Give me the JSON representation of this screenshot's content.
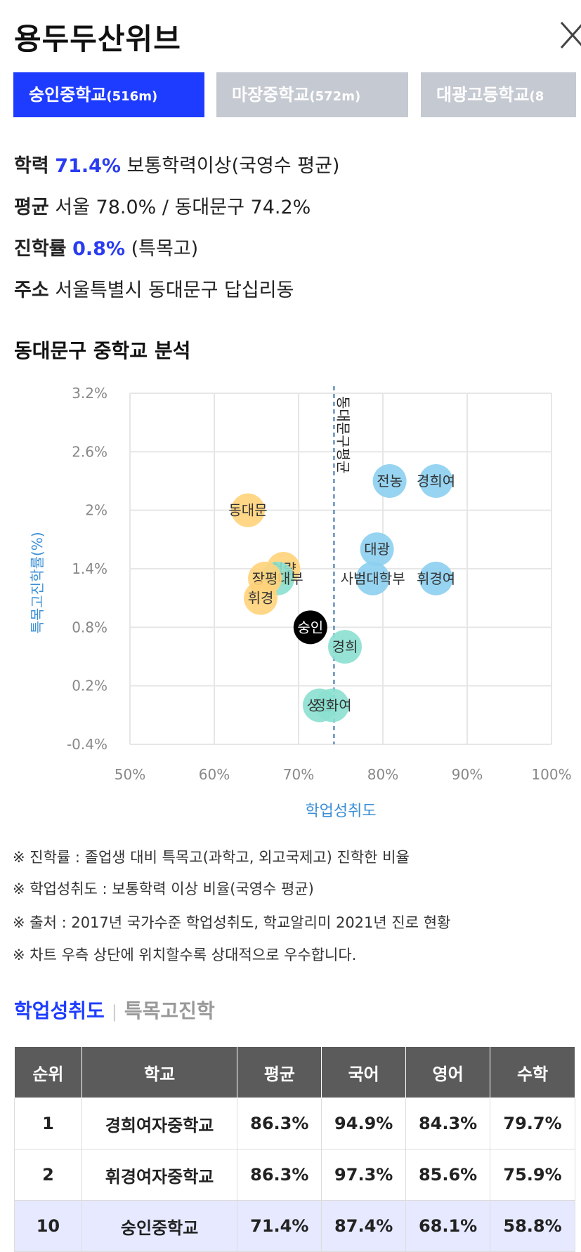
{
  "page": {
    "title": "용두두산위브"
  },
  "tabs": [
    {
      "name": "숭인중학교",
      "dist": "(516m)",
      "active": true
    },
    {
      "name": "마장중학교",
      "dist": "(572m)",
      "active": false
    },
    {
      "name": "대광고등학교",
      "dist": "(8",
      "active": false
    }
  ],
  "info": {
    "academic_label": "학력",
    "academic_value": "71.4%",
    "academic_desc": "보통학력이상(국영수 평균)",
    "avg_label": "평균",
    "avg_desc": "서울 78.0% / 동대문구 74.2%",
    "adv_label": "진학률",
    "adv_value": "0.8%",
    "adv_desc": "(특목고)",
    "addr_label": "주소",
    "addr_desc": "서울특별시 동대문구 답십리동"
  },
  "analysis": {
    "title": "동대문구 중학교 분석"
  },
  "chart_data": {
    "type": "scatter",
    "xlabel": "학업성취도",
    "ylabel": "특목고진학률(%)",
    "xlim": [
      50,
      100
    ],
    "ylim": [
      -0.4,
      3.2
    ],
    "x_ticks": [
      "50%",
      "60%",
      "70%",
      "80%",
      "90%",
      "100%"
    ],
    "y_ticks": [
      "3.2%",
      "2.6%",
      "2%",
      "1.4%",
      "0.8%",
      "0.2%",
      "-0.4%"
    ],
    "grid": true,
    "reference_line": {
      "x": 74.2,
      "label": "동대문구평균"
    },
    "colors": {
      "blue": "#8ccff0",
      "teal": "#8be0d0",
      "yellow": "#ffd37a",
      "black": "#000000",
      "grid": "#e6e6e6",
      "ref": "#3a6ea5"
    },
    "points": [
      {
        "label": "전농",
        "x": 80.8,
        "y": 2.3,
        "color": "blue"
      },
      {
        "label": "경희여",
        "x": 86.3,
        "y": 2.3,
        "color": "blue"
      },
      {
        "label": "동대문",
        "x": 64.0,
        "y": 2.0,
        "color": "yellow"
      },
      {
        "label": "대광",
        "x": 79.3,
        "y": 1.6,
        "color": "blue"
      },
      {
        "label": "휘경여",
        "x": 86.3,
        "y": 1.3,
        "color": "blue"
      },
      {
        "label": "청량",
        "x": 68.2,
        "y": 1.4,
        "color": "yellow"
      },
      {
        "label": "동국대부",
        "x": 67.5,
        "y": 1.3,
        "color": "teal"
      },
      {
        "label": "장평",
        "x": 66.0,
        "y": 1.3,
        "color": "yellow"
      },
      {
        "label": "사범대학부",
        "x": 78.8,
        "y": 1.3,
        "color": "blue"
      },
      {
        "label": "휘경",
        "x": 65.5,
        "y": 1.1,
        "color": "yellow"
      },
      {
        "label": "숭인",
        "x": 71.4,
        "y": 0.8,
        "color": "black"
      },
      {
        "label": "경희",
        "x": 75.5,
        "y": 0.6,
        "color": "teal"
      },
      {
        "label": "성일",
        "x": 72.5,
        "y": 0.0,
        "color": "teal"
      },
      {
        "label": "정화여",
        "x": 74.0,
        "y": 0.0,
        "color": "teal"
      }
    ]
  },
  "notes": [
    "※ 진학률 : 졸업생 대비 특목고(과학고, 외고국제고) 진학한 비율",
    "※ 학업성취도 : 보통학력 이상 비율(국영수 평균)",
    "※ 출처 : 2017년 국가수준 학업성취도, 학교알리미 2021년 진로 현황",
    "※ 차트 우측 상단에 위치할수록 상대적으로 우수합니다."
  ],
  "subtabs": {
    "active": "학업성취도",
    "inactive": "특목고진학"
  },
  "table": {
    "headers": [
      "순위",
      "학교",
      "평균",
      "국어",
      "영어",
      "수학"
    ],
    "rows": [
      [
        "1",
        "경희여자중학교",
        "86.3%",
        "94.9%",
        "84.3%",
        "79.7%"
      ],
      [
        "2",
        "휘경여자중학교",
        "86.3%",
        "97.3%",
        "85.6%",
        "75.9%"
      ],
      [
        "10",
        "숭인중학교",
        "71.4%",
        "87.4%",
        "68.1%",
        "58.8%"
      ]
    ]
  }
}
